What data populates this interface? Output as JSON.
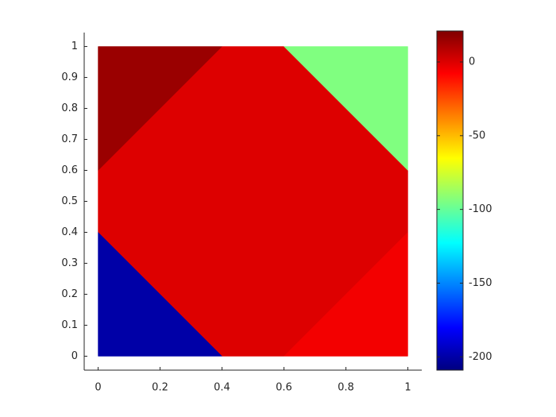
{
  "chart_data": {
    "type": "region-map",
    "regions": [
      {
        "points": [
          [
            0,
            0.4
          ],
          [
            0,
            0.6
          ],
          [
            0.4,
            1
          ],
          [
            0.6,
            1
          ],
          [
            1,
            0.6
          ],
          [
            1,
            0.4
          ],
          [
            0.6,
            0
          ],
          [
            0.4,
            0
          ]
        ],
        "value": 0
      },
      {
        "points": [
          [
            0,
            0.6
          ],
          [
            0,
            1
          ],
          [
            0.4,
            1
          ]
        ],
        "value": 15
      },
      {
        "points": [
          [
            0.6,
            1
          ],
          [
            1,
            1
          ],
          [
            1,
            0.6
          ]
        ],
        "value": -94
      },
      {
        "points": [
          [
            0,
            0
          ],
          [
            0,
            0.4
          ],
          [
            0.4,
            0
          ]
        ],
        "value": -200
      },
      {
        "points": [
          [
            0.6,
            0
          ],
          [
            1,
            0
          ],
          [
            1,
            0.4
          ]
        ],
        "value": -5
      }
    ],
    "colormap": "jet",
    "clim": [
      -209,
      21
    ],
    "cticks": [
      0,
      -50,
      -100,
      -150,
      -200
    ],
    "xlim": [
      -0.045,
      1.045
    ],
    "ylim": [
      -0.045,
      1.045
    ],
    "xticks": [
      0,
      0.2,
      0.4,
      0.6,
      0.8,
      1
    ],
    "yticks": [
      0,
      0.1,
      0.2,
      0.3,
      0.4,
      0.5,
      0.6,
      0.7,
      0.8,
      0.9,
      1
    ]
  }
}
